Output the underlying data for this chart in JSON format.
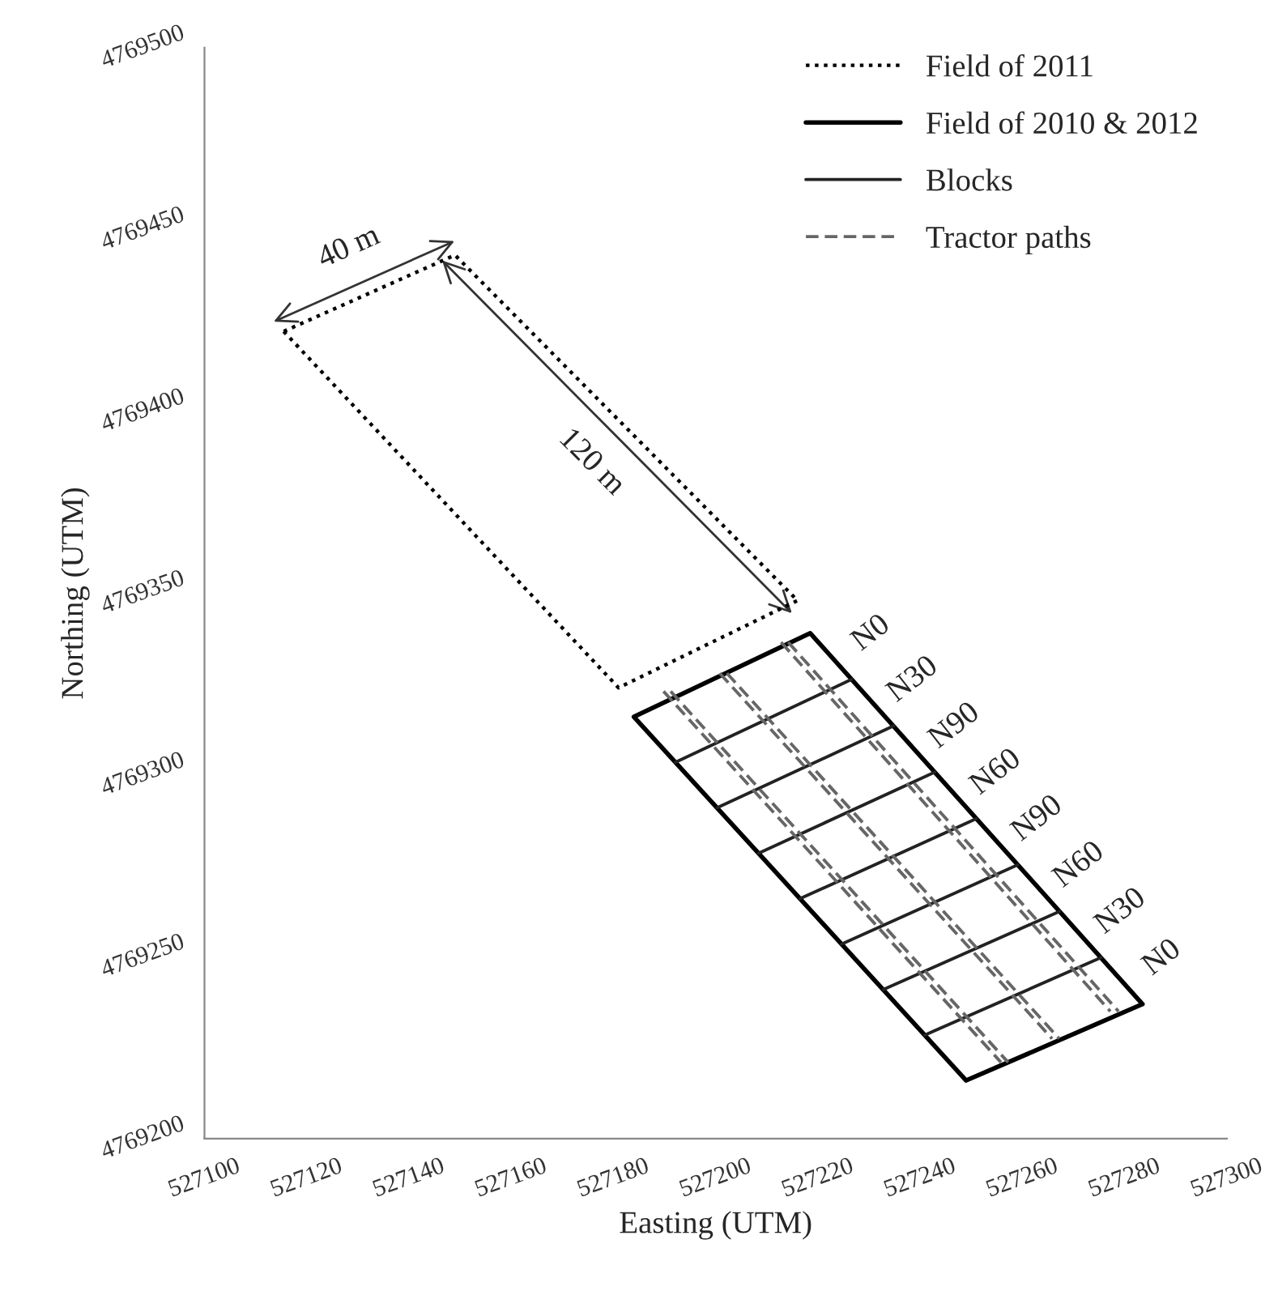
{
  "chart_data": {
    "type": "line",
    "xlabel": "Easting (UTM)",
    "ylabel": "Northing (UTM)",
    "series": [
      {
        "name": "Field of 2011",
        "color": "#000000",
        "line_style": "dotted",
        "x": [
          527115.5,
          527149,
          527216,
          null,
          527115.5,
          527181,
          527216
        ],
        "values": [
          4769422,
          4769443,
          4769348,
          null,
          4769422,
          4769324,
          4769348
        ]
      },
      {
        "name": "Field of 2010 & 2012",
        "color": "#000000",
        "line_style": "solid",
        "x": [
          527184,
          527218.5,
          527283.5,
          null,
          527184,
          527249,
          527283.5
        ],
        "values": [
          4769316,
          4769339,
          4769237,
          null,
          4769316,
          4769216,
          4769237
        ]
      },
      {
        "name": "Blocks",
        "color": "#222222",
        "line_style": "solid",
        "x": [
          527192.1,
          527226.6,
          null,
          527200.3,
          527234.8,
          null,
          527208.4,
          527242.9,
          null,
          527216.5,
          527251,
          null,
          527224.6,
          527259.1,
          null,
          527232.8,
          527267.3,
          null,
          527240.9,
          527275.4
        ],
        "values": [
          4769303.5,
          4769326.3,
          null,
          4769291,
          4769313.5,
          null,
          4769278.5,
          4769300.8,
          null,
          4769266,
          4769288,
          null,
          4769253.5,
          4769275.3,
          null,
          4769241,
          4769262.5,
          null,
          4769228.5,
          4769249.8
        ]
      },
      {
        "name": "Tractor paths",
        "color": "#666666",
        "line_style": "dashed",
        "x": [
          527189.8,
          527255.8,
          null,
          527191.2,
          527257.2,
          null,
          527200.8,
          527265.8,
          null,
          527202.2,
          527267.2,
          null,
          527212.8,
          527277.2,
          null,
          527214.2,
          527278.8
        ],
        "values": [
          4769323,
          4769221,
          null,
          4769323,
          4769221,
          null,
          4769328,
          4769227.5,
          null,
          4769328,
          4769227.5,
          null,
          4769336.5,
          4769235,
          null,
          4769336.5,
          4769235
        ]
      }
    ],
    "annotations": [
      "40 m",
      "120 m",
      "N0",
      "N30",
      "N90",
      "N60",
      "N90",
      "N60",
      "N30",
      "N0"
    ],
    "xlim": [
      527100,
      527300
    ],
    "xticks": [
      527100,
      527120,
      527140,
      527160,
      527180,
      527200,
      527220,
      527240,
      527260,
      527280,
      527300
    ],
    "ylim": [
      4769200,
      4769500
    ],
    "yticks": [
      4769200,
      4769250,
      4769300,
      4769350,
      4769400,
      4769450,
      4769500
    ],
    "grid": false,
    "legend": "top right"
  }
}
